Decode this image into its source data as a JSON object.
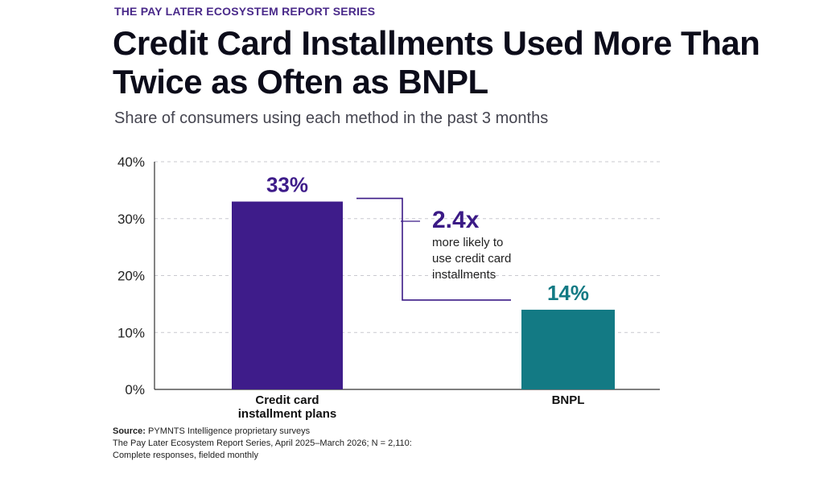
{
  "header": {
    "series_label": "THE PAY LATER ECOSYSTEM REPORT SERIES",
    "title": "Credit Card Installments Used More Than Twice as Often as BNPL",
    "subtitle": "Share of consumers using each method in the past 3 months"
  },
  "chart_data": {
    "type": "bar",
    "categories": [
      "Credit card installment plans",
      "BNPL"
    ],
    "category_lines": [
      [
        "Credit card",
        "installment plans"
      ],
      [
        "BNPL"
      ]
    ],
    "values": [
      33,
      14
    ],
    "value_labels": [
      "33%",
      "14%"
    ],
    "y_ticks": [
      "0%",
      "10%",
      "20%",
      "30%",
      "40%"
    ],
    "ylim": [
      0,
      40
    ],
    "grid": true,
    "colors": [
      "#3e1c8a",
      "#137a84"
    ],
    "annotation": {
      "multiplier": "2.4x",
      "lines": [
        "more likely to",
        "use credit card",
        "installments"
      ],
      "color": "#3b1a86"
    }
  },
  "footer": {
    "source_label": "Source:",
    "source_text": "PYMNTS Intelligence proprietary surveys",
    "line2": "The Pay Later Ecosystem Report Series, April 2025–March 2026; N = 2,110:",
    "line3": "Complete responses, fielded monthly"
  }
}
